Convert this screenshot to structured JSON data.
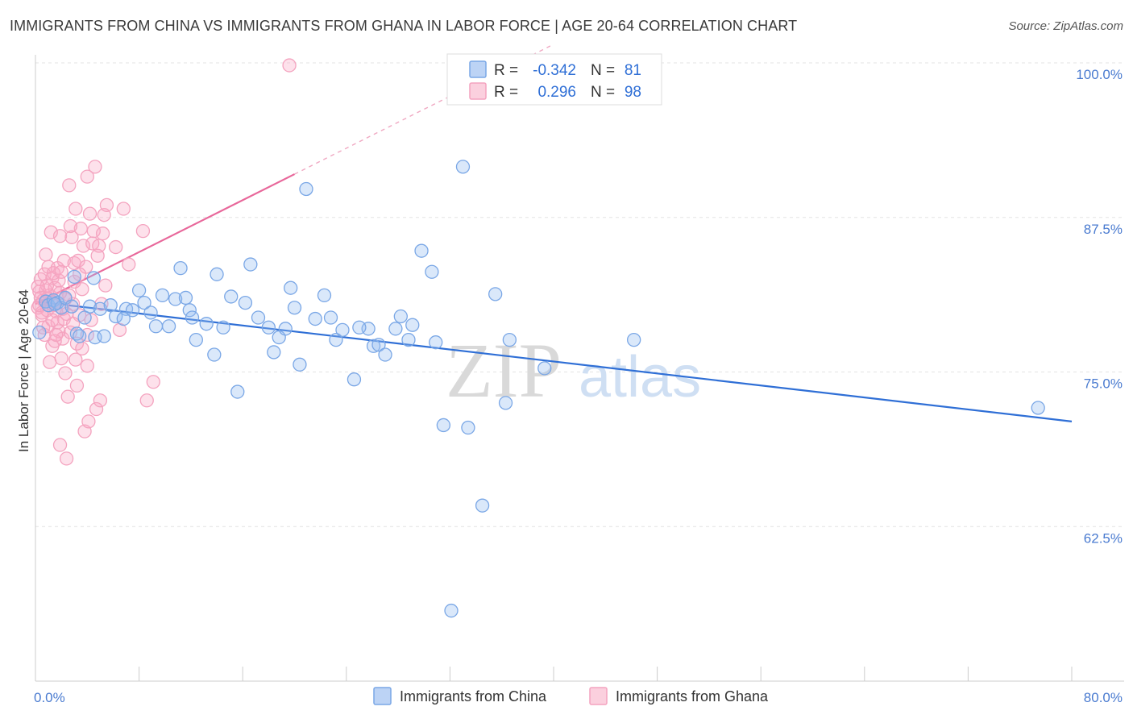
{
  "header": {
    "title": "IMMIGRANTS FROM CHINA VS IMMIGRANTS FROM GHANA IN LABOR FORCE | AGE 20-64 CORRELATION CHART",
    "source": "Source: ZipAtlas.com"
  },
  "watermark": {
    "zip": "ZIP",
    "atlas": "atlas"
  },
  "stats": {
    "r_label": "R =",
    "n_label": "N =",
    "china": {
      "r": "-0.342",
      "n": "81"
    },
    "ghana": {
      "r": "0.296",
      "n": "98"
    }
  },
  "chart_data": {
    "type": "scatter",
    "ylabel": "In Labor Force | Age 20-64",
    "xlim": [
      0,
      80
    ],
    "ylim": [
      50,
      100
    ],
    "x_tick_labels": [
      "0.0%",
      "80.0%"
    ],
    "y_ticks": [
      62.5,
      75.0,
      87.5,
      100.0
    ],
    "y_tick_labels": [
      "62.5%",
      "75.0%",
      "87.5%",
      "100.0%"
    ],
    "grid": "horizontal dashed",
    "legend_position": "top-center",
    "colors": {
      "china": "#7aa7e6",
      "china_line": "#2f6fd6",
      "ghana": "#f4a3bf",
      "ghana_line": "#e8679a"
    },
    "series": [
      {
        "name": "Immigrants from China",
        "trend": {
          "x": [
            0,
            80
          ],
          "y": [
            80.7,
            71.0
          ]
        },
        "points": [
          [
            0.3,
            78.2
          ],
          [
            0.8,
            80.7
          ],
          [
            1.0,
            80.4
          ],
          [
            1.4,
            80.8
          ],
          [
            1.7,
            80.6
          ],
          [
            2.0,
            80.2
          ],
          [
            2.3,
            81.0
          ],
          [
            2.8,
            80.3
          ],
          [
            3.0,
            82.7
          ],
          [
            3.2,
            78.1
          ],
          [
            3.4,
            77.9
          ],
          [
            3.8,
            79.4
          ],
          [
            4.2,
            80.3
          ],
          [
            4.6,
            77.8
          ],
          [
            5.0,
            80.1
          ],
          [
            5.3,
            77.9
          ],
          [
            5.8,
            80.4
          ],
          [
            6.2,
            79.5
          ],
          [
            7.0,
            80.1
          ],
          [
            7.5,
            80.0
          ],
          [
            8.0,
            81.6
          ],
          [
            8.4,
            80.6
          ],
          [
            8.9,
            79.8
          ],
          [
            9.3,
            78.7
          ],
          [
            9.8,
            81.2
          ],
          [
            10.3,
            78.7
          ],
          [
            10.8,
            80.9
          ],
          [
            11.2,
            83.4
          ],
          [
            11.6,
            81.0
          ],
          [
            11.9,
            80.0
          ],
          [
            12.4,
            77.6
          ],
          [
            13.2,
            78.9
          ],
          [
            13.8,
            76.4
          ],
          [
            14.5,
            78.6
          ],
          [
            15.1,
            81.1
          ],
          [
            15.6,
            73.4
          ],
          [
            16.2,
            80.6
          ],
          [
            16.6,
            83.7
          ],
          [
            17.2,
            79.4
          ],
          [
            18.0,
            78.6
          ],
          [
            18.4,
            76.6
          ],
          [
            18.8,
            77.8
          ],
          [
            19.3,
            78.5
          ],
          [
            19.7,
            81.8
          ],
          [
            20.0,
            80.2
          ],
          [
            20.4,
            75.6
          ],
          [
            20.9,
            89.8
          ],
          [
            21.6,
            79.3
          ],
          [
            22.3,
            81.2
          ],
          [
            22.8,
            79.4
          ],
          [
            23.2,
            77.6
          ],
          [
            23.7,
            78.4
          ],
          [
            24.6,
            74.4
          ],
          [
            25.7,
            78.5
          ],
          [
            26.1,
            77.1
          ],
          [
            26.5,
            77.2
          ],
          [
            27.0,
            76.4
          ],
          [
            27.8,
            78.5
          ],
          [
            28.2,
            79.5
          ],
          [
            28.8,
            77.6
          ],
          [
            29.1,
            78.8
          ],
          [
            29.8,
            84.8
          ],
          [
            30.6,
            83.1
          ],
          [
            30.9,
            77.4
          ],
          [
            31.5,
            70.7
          ],
          [
            32.1,
            55.7
          ],
          [
            33.0,
            91.6
          ],
          [
            33.4,
            70.5
          ],
          [
            34.5,
            64.2
          ],
          [
            35.5,
            81.3
          ],
          [
            36.3,
            72.5
          ],
          [
            36.6,
            77.6
          ],
          [
            39.3,
            75.3
          ],
          [
            46.2,
            77.6
          ],
          [
            77.4,
            72.1
          ],
          [
            4.5,
            82.6
          ],
          [
            6.8,
            79.3
          ],
          [
            12.1,
            79.4
          ],
          [
            14.0,
            82.9
          ],
          [
            25.0,
            78.6
          ],
          [
            1.5,
            80.5
          ]
        ]
      },
      {
        "name": "Immigrants from Ghana",
        "trend": {
          "x": [
            0,
            20
          ],
          "y": [
            80.5,
            91.0
          ]
        },
        "points": [
          [
            0.2,
            80.2
          ],
          [
            0.3,
            81.5
          ],
          [
            0.4,
            82.5
          ],
          [
            0.5,
            79.6
          ],
          [
            0.6,
            80.8
          ],
          [
            0.7,
            82.9
          ],
          [
            0.7,
            78.0
          ],
          [
            0.8,
            81.6
          ],
          [
            0.9,
            80.0
          ],
          [
            1.0,
            83.5
          ],
          [
            1.0,
            78.7
          ],
          [
            1.1,
            81.2
          ],
          [
            1.2,
            86.3
          ],
          [
            1.3,
            82.6
          ],
          [
            1.3,
            77.1
          ],
          [
            1.4,
            80.4
          ],
          [
            1.5,
            81.8
          ],
          [
            1.6,
            79.9
          ],
          [
            1.7,
            83.4
          ],
          [
            1.8,
            78.3
          ],
          [
            1.9,
            86.0
          ],
          [
            1.9,
            69.1
          ],
          [
            2.0,
            76.1
          ],
          [
            2.1,
            77.7
          ],
          [
            2.2,
            84.0
          ],
          [
            2.3,
            74.9
          ],
          [
            2.3,
            80.9
          ],
          [
            2.4,
            68.0
          ],
          [
            2.5,
            73.0
          ],
          [
            2.6,
            90.1
          ],
          [
            2.7,
            78.2
          ],
          [
            2.8,
            85.9
          ],
          [
            2.9,
            80.5
          ],
          [
            3.0,
            83.8
          ],
          [
            3.1,
            76.0
          ],
          [
            3.1,
            88.2
          ],
          [
            3.2,
            77.3
          ],
          [
            3.3,
            84.0
          ],
          [
            3.4,
            79.6
          ],
          [
            3.5,
            86.6
          ],
          [
            3.6,
            76.9
          ],
          [
            3.7,
            85.2
          ],
          [
            3.8,
            70.2
          ],
          [
            3.9,
            83.5
          ],
          [
            4.0,
            90.8
          ],
          [
            4.0,
            78.0
          ],
          [
            4.1,
            71.0
          ],
          [
            4.2,
            87.8
          ],
          [
            4.3,
            79.2
          ],
          [
            4.4,
            85.4
          ],
          [
            4.5,
            86.4
          ],
          [
            4.6,
            91.6
          ],
          [
            4.7,
            72.0
          ],
          [
            4.8,
            84.4
          ],
          [
            4.9,
            85.2
          ],
          [
            5.0,
            72.7
          ],
          [
            5.1,
            80.5
          ],
          [
            5.2,
            86.2
          ],
          [
            5.3,
            87.7
          ],
          [
            5.4,
            82.0
          ],
          [
            6.2,
            85.1
          ],
          [
            6.5,
            78.4
          ],
          [
            6.8,
            88.2
          ],
          [
            7.2,
            83.7
          ],
          [
            8.3,
            86.4
          ],
          [
            8.6,
            72.7
          ],
          [
            9.1,
            74.2
          ],
          [
            19.6,
            99.8
          ],
          [
            0.9,
            82.0
          ],
          [
            1.7,
            79.0
          ],
          [
            2.6,
            81.2
          ],
          [
            3.4,
            82.9
          ],
          [
            0.5,
            79.8
          ],
          [
            1.2,
            80.7
          ],
          [
            1.8,
            82.4
          ],
          [
            2.2,
            79.3
          ],
          [
            0.4,
            81.0
          ],
          [
            1.5,
            77.5
          ],
          [
            2.9,
            78.9
          ],
          [
            3.6,
            81.7
          ],
          [
            0.8,
            84.5
          ],
          [
            1.1,
            75.8
          ],
          [
            1.4,
            83.0
          ],
          [
            2.1,
            80.1
          ],
          [
            2.7,
            86.8
          ],
          [
            3.2,
            73.9
          ],
          [
            0.3,
            80.4
          ],
          [
            0.6,
            78.6
          ],
          [
            1.9,
            81.4
          ],
          [
            2.4,
            79.7
          ],
          [
            3.0,
            82.3
          ],
          [
            0.9,
            80.9
          ],
          [
            1.3,
            79.2
          ],
          [
            1.6,
            78.0
          ],
          [
            2.0,
            83.1
          ],
          [
            4.0,
            75.5
          ],
          [
            0.2,
            81.9
          ],
          [
            5.5,
            88.5
          ]
        ]
      }
    ]
  }
}
